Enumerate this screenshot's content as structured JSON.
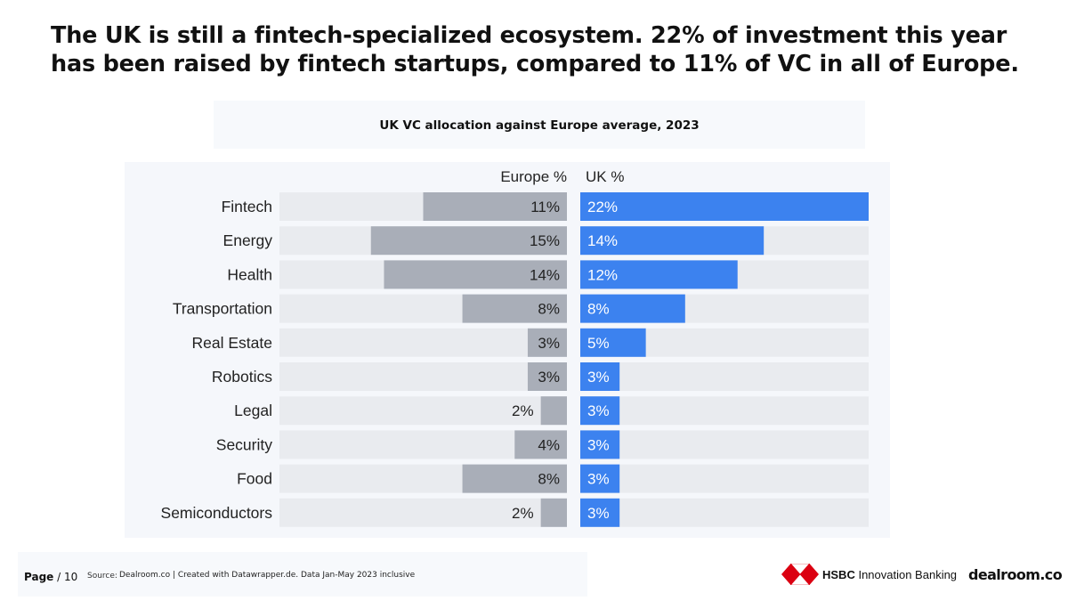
{
  "headline": "The UK is still a fintech-specialized ecosystem. 22% of investment this year has been raised by fintech startups, compared to 11% of VC in all of Europe.",
  "chart_data": {
    "type": "bar",
    "orientation": "horizontal-split",
    "title": "UK VC allocation against Europe average, 2023",
    "categories": [
      "Fintech",
      "Energy",
      "Health",
      "Transportation",
      "Real Estate",
      "Robotics",
      "Legal",
      "Security",
      "Food",
      "Semiconductors"
    ],
    "series": [
      {
        "name": "Europe %",
        "values": [
          11,
          15,
          14,
          8,
          3,
          3,
          2,
          4,
          8,
          2
        ],
        "labels": [
          "11%",
          "15%",
          "14%",
          "8%",
          "3%",
          "3%",
          "2%",
          "4%",
          "8%",
          "2%"
        ],
        "color": "#a9aeb8"
      },
      {
        "name": "UK %",
        "values": [
          22,
          14,
          12,
          8,
          5,
          3,
          3,
          3,
          3,
          3
        ],
        "labels": [
          "22%",
          "14%",
          "12%",
          "8%",
          "5%",
          "3%",
          "3%",
          "3%",
          "3%",
          "3%"
        ],
        "color": "#3c82ef"
      }
    ],
    "xlim": [
      0,
      22
    ],
    "track_color": "#e9ebef"
  },
  "footer": {
    "page_word": "Page",
    "page_separator": "/ 10",
    "source_label": "Source:",
    "source_text": "Dealroom.co | Created with Datawrapper.de. Data Jan-May 2023 inclusive"
  },
  "logos": {
    "hsbc_bold": "HSBC",
    "hsbc_rest": " Innovation Banking",
    "dealroom": "dealroom.co",
    "hsbc_red": "#db0011"
  }
}
